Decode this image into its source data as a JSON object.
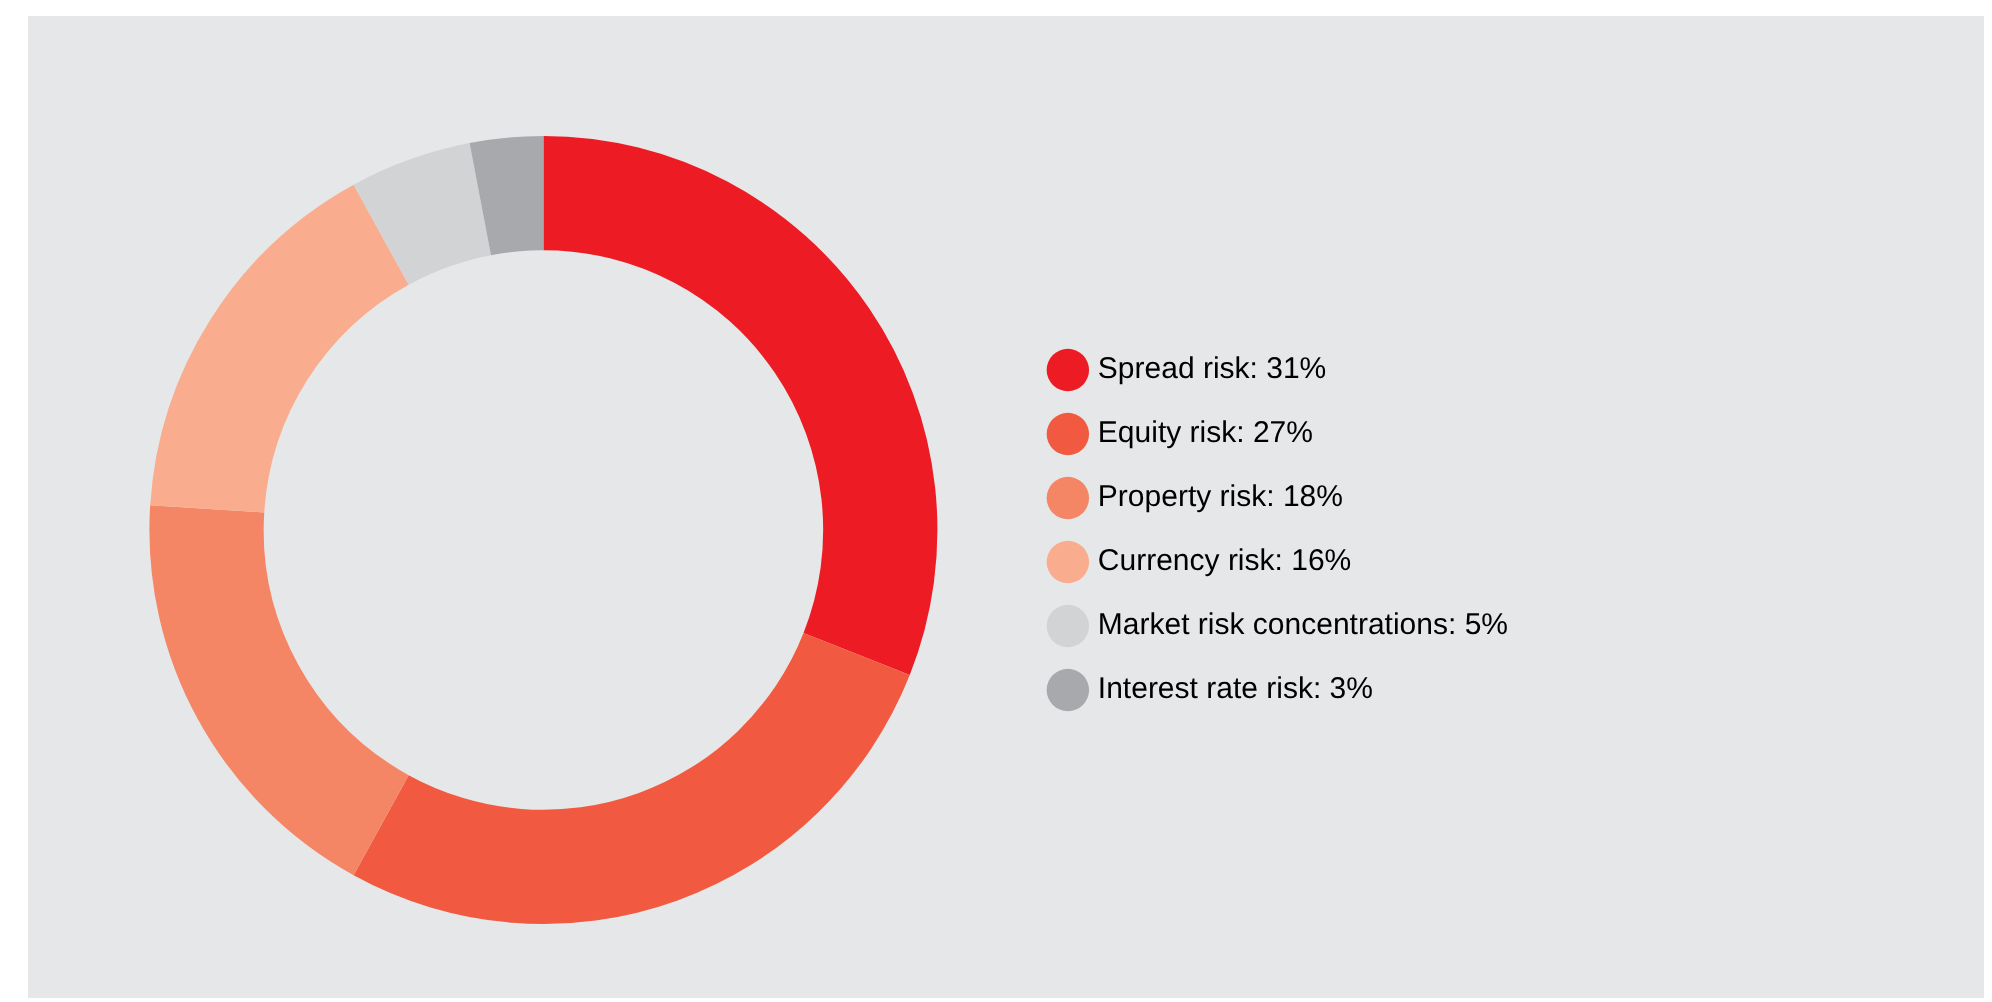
{
  "chart_data": {
    "type": "donut",
    "categories": [
      "Spread risk",
      "Equity risk",
      "Property risk",
      "Currency risk",
      "Market risk concentrations",
      "Interest rate risk"
    ],
    "values": [
      31,
      27,
      18,
      16,
      5,
      3
    ],
    "value_labels": [
      "31%",
      "27%",
      "18%",
      "16%",
      "5%",
      "3%"
    ],
    "colors": [
      "#ed1c24",
      "#f15a40",
      "#f48565",
      "#f9ac8e",
      "#d1d3d4",
      "#a7a9ac"
    ],
    "legend": "right"
  }
}
